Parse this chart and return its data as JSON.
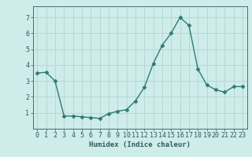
{
  "x": [
    0,
    1,
    2,
    3,
    4,
    5,
    6,
    7,
    8,
    9,
    10,
    11,
    12,
    13,
    14,
    15,
    16,
    17,
    18,
    19,
    20,
    21,
    22,
    23
  ],
  "y": [
    3.5,
    3.55,
    3.0,
    0.8,
    0.8,
    0.75,
    0.7,
    0.65,
    0.95,
    1.1,
    1.2,
    1.75,
    2.6,
    4.1,
    5.25,
    6.0,
    7.0,
    6.5,
    3.75,
    2.75,
    2.45,
    2.3,
    2.65,
    2.65
  ],
  "line_color": "#2e7d6e",
  "marker": "D",
  "marker_size": 2.5,
  "bg_color": "#ceecea",
  "grid_color": "#b8d8d4",
  "tick_color": "#2e5c58",
  "xlabel": "Humidex (Indice chaleur)",
  "xlim": [
    -0.5,
    23.5
  ],
  "ylim": [
    0,
    7.7
  ],
  "yticks": [
    1,
    2,
    3,
    4,
    5,
    6,
    7
  ],
  "xticks": [
    0,
    1,
    2,
    3,
    4,
    5,
    6,
    7,
    8,
    9,
    10,
    11,
    12,
    13,
    14,
    15,
    16,
    17,
    18,
    19,
    20,
    21,
    22,
    23
  ],
  "label_fontsize": 6.5,
  "tick_fontsize": 6,
  "linewidth": 1.0
}
